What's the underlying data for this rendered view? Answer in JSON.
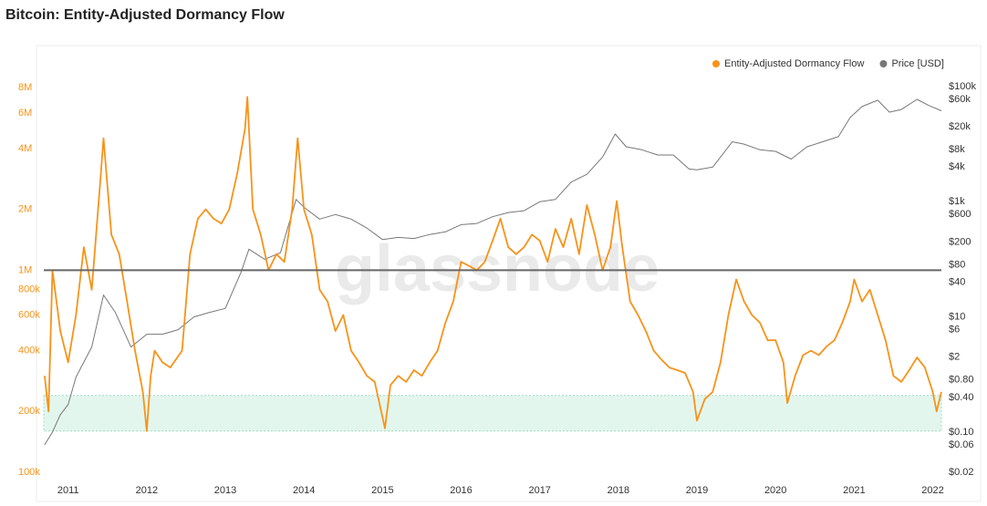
{
  "chart_data": {
    "type": "line",
    "title": "Bitcoin: Entity-Adjusted Dormancy Flow",
    "watermark": "glassnode",
    "legend": "top-right",
    "grid": false,
    "log_y": true,
    "log_y2": true,
    "xlim": [
      2010.69,
      2022.11
    ],
    "xticks": [
      2011,
      2012,
      2013,
      2014,
      2015,
      2016,
      2017,
      2018,
      2019,
      2020,
      2021,
      2022
    ],
    "ylim": [
      100000,
      8100000
    ],
    "yticks": [
      {
        "value": 100000,
        "label": "100k"
      },
      {
        "value": 200000,
        "label": "200k"
      },
      {
        "value": 400000,
        "label": "400k"
      },
      {
        "value": 600000,
        "label": "600k"
      },
      {
        "value": 800000,
        "label": "800k"
      },
      {
        "value": 1000000,
        "label": "1M"
      },
      {
        "value": 2000000,
        "label": "2M"
      },
      {
        "value": 4000000,
        "label": "4M"
      },
      {
        "value": 6000000,
        "label": "6M"
      },
      {
        "value": 8000000,
        "label": "8M"
      }
    ],
    "y2lim": [
      0.02,
      100000
    ],
    "y2ticks": [
      {
        "value": 0.02,
        "label": "$0.02"
      },
      {
        "value": 0.06,
        "label": "$0.06"
      },
      {
        "value": 0.1,
        "label": "$0.10"
      },
      {
        "value": 0.4,
        "label": "$0.40"
      },
      {
        "value": 0.8,
        "label": "$0.80"
      },
      {
        "value": 2,
        "label": "$2"
      },
      {
        "value": 6,
        "label": "$6"
      },
      {
        "value": 10,
        "label": "$10"
      },
      {
        "value": 40,
        "label": "$40"
      },
      {
        "value": 80,
        "label": "$80"
      },
      {
        "value": 200,
        "label": "$200"
      },
      {
        "value": 600,
        "label": "$600"
      },
      {
        "value": 1000,
        "label": "$1k"
      },
      {
        "value": 4000,
        "label": "$4k"
      },
      {
        "value": 8000,
        "label": "$8k"
      },
      {
        "value": 20000,
        "label": "$20k"
      },
      {
        "value": 60000,
        "label": "$60k"
      },
      {
        "value": 100000,
        "label": "$100k"
      }
    ],
    "reference_line": 1000000,
    "band": [
      160000,
      240000
    ],
    "series": [
      {
        "name": "Entity-Adjusted Dormancy Flow",
        "color": "#f7931a",
        "x": [
          2010.7,
          2010.75,
          2010.8,
          2010.9,
          2011.0,
          2011.1,
          2011.2,
          2011.3,
          2011.4,
          2011.45,
          2011.55,
          2011.65,
          2011.75,
          2011.85,
          2011.95,
          2012.0,
          2012.05,
          2012.1,
          2012.2,
          2012.3,
          2012.45,
          2012.55,
          2012.65,
          2012.75,
          2012.85,
          2012.95,
          2013.05,
          2013.15,
          2013.25,
          2013.28,
          2013.35,
          2013.45,
          2013.55,
          2013.65,
          2013.75,
          2013.85,
          2013.92,
          2014.0,
          2014.1,
          2014.2,
          2014.3,
          2014.4,
          2014.5,
          2014.6,
          2014.7,
          2014.8,
          2014.9,
          2015.03,
          2015.1,
          2015.2,
          2015.3,
          2015.4,
          2015.5,
          2015.6,
          2015.7,
          2015.8,
          2015.9,
          2016.0,
          2016.1,
          2016.2,
          2016.3,
          2016.4,
          2016.5,
          2016.6,
          2016.7,
          2016.8,
          2016.9,
          2017.0,
          2017.1,
          2017.2,
          2017.3,
          2017.4,
          2017.5,
          2017.6,
          2017.7,
          2017.8,
          2017.9,
          2017.98,
          2018.05,
          2018.15,
          2018.25,
          2018.35,
          2018.45,
          2018.55,
          2018.65,
          2018.75,
          2018.85,
          2018.95,
          2019.0,
          2019.1,
          2019.2,
          2019.3,
          2019.4,
          2019.5,
          2019.6,
          2019.7,
          2019.8,
          2019.9,
          2020.0,
          2020.1,
          2020.15,
          2020.25,
          2020.35,
          2020.45,
          2020.55,
          2020.65,
          2020.75,
          2020.85,
          2020.95,
          2021.0,
          2021.1,
          2021.2,
          2021.3,
          2021.4,
          2021.5,
          2021.6,
          2021.7,
          2021.8,
          2021.9,
          2022.0,
          2022.05,
          2022.11
        ],
        "values": [
          300000,
          200000,
          1000000,
          500000,
          350000,
          600000,
          1300000,
          800000,
          2500000,
          4500000,
          1500000,
          1200000,
          700000,
          400000,
          250000,
          160000,
          300000,
          400000,
          350000,
          330000,
          400000,
          1200000,
          1800000,
          2000000,
          1800000,
          1700000,
          2000000,
          3000000,
          5000000,
          7200000,
          2000000,
          1500000,
          1000000,
          1200000,
          1100000,
          2000000,
          4500000,
          2000000,
          1500000,
          800000,
          700000,
          500000,
          600000,
          400000,
          350000,
          300000,
          280000,
          165000,
          270000,
          300000,
          280000,
          320000,
          300000,
          350000,
          400000,
          550000,
          700000,
          1100000,
          1050000,
          1000000,
          1100000,
          1400000,
          1800000,
          1300000,
          1200000,
          1300000,
          1500000,
          1400000,
          1100000,
          1600000,
          1300000,
          1800000,
          1200000,
          2100000,
          1500000,
          1000000,
          1300000,
          2200000,
          1300000,
          700000,
          600000,
          500000,
          400000,
          360000,
          330000,
          320000,
          310000,
          250000,
          180000,
          230000,
          250000,
          350000,
          600000,
          900000,
          700000,
          600000,
          550000,
          450000,
          450000,
          350000,
          220000,
          300000,
          380000,
          400000,
          380000,
          420000,
          450000,
          550000,
          700000,
          900000,
          700000,
          800000,
          600000,
          450000,
          300000,
          280000,
          320000,
          370000,
          330000,
          250000,
          200000,
          250000
        ]
      },
      {
        "name": "Price [USD]",
        "color": "#777777",
        "axis": "y2",
        "x": [
          2010.7,
          2010.8,
          2010.9,
          2011.0,
          2011.1,
          2011.3,
          2011.45,
          2011.6,
          2011.8,
          2012.0,
          2012.2,
          2012.4,
          2012.6,
          2012.8,
          2013.0,
          2013.2,
          2013.3,
          2013.5,
          2013.7,
          2013.9,
          2014.0,
          2014.2,
          2014.4,
          2014.6,
          2014.8,
          2015.0,
          2015.2,
          2015.4,
          2015.6,
          2015.8,
          2016.0,
          2016.2,
          2016.4,
          2016.6,
          2016.8,
          2017.0,
          2017.2,
          2017.4,
          2017.6,
          2017.8,
          2017.96,
          2018.1,
          2018.3,
          2018.5,
          2018.7,
          2018.9,
          2019.0,
          2019.2,
          2019.45,
          2019.6,
          2019.8,
          2020.0,
          2020.2,
          2020.4,
          2020.6,
          2020.8,
          2020.95,
          2021.1,
          2021.3,
          2021.45,
          2021.6,
          2021.8,
          2021.95,
          2022.11
        ],
        "values": [
          0.06,
          0.1,
          0.2,
          0.3,
          0.9,
          3,
          24,
          12,
          3,
          5,
          5,
          6,
          10,
          12,
          14,
          60,
          150,
          100,
          130,
          1100,
          800,
          500,
          600,
          500,
          350,
          220,
          240,
          230,
          270,
          300,
          400,
          420,
          550,
          650,
          700,
          1000,
          1100,
          2200,
          3000,
          6000,
          15000,
          9000,
          8000,
          6500,
          6500,
          3700,
          3600,
          4000,
          11000,
          10000,
          8000,
          7500,
          5500,
          9000,
          11000,
          13500,
          29000,
          45000,
          58000,
          36000,
          40000,
          60000,
          47000,
          38000
        ]
      }
    ]
  }
}
